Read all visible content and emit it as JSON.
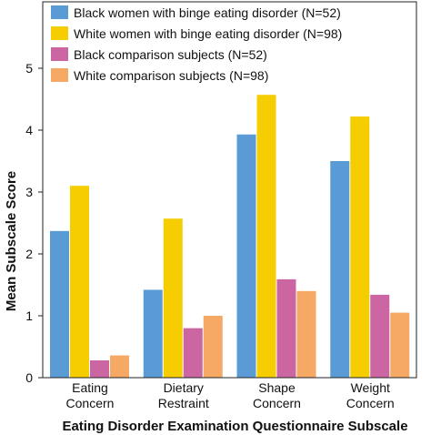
{
  "chart_data": {
    "type": "bar",
    "categories": [
      [
        "Eating",
        "Concern"
      ],
      [
        "Dietary",
        "Restraint"
      ],
      [
        "Shape",
        "Concern"
      ],
      [
        "Weight",
        "Concern"
      ]
    ],
    "series": [
      {
        "name": "Black women with binge eating disorder (N=52)",
        "color": "#5b9bd5",
        "values": [
          2.37,
          1.42,
          3.93,
          3.5
        ]
      },
      {
        "name": "White women with binge eating disorder (N=98)",
        "color": "#f5cd00",
        "values": [
          3.1,
          2.57,
          4.57,
          4.22
        ]
      },
      {
        "name": "Black comparison subjects (N=52)",
        "color": "#cc66a3",
        "values": [
          0.28,
          0.8,
          1.59,
          1.34
        ]
      },
      {
        "name": "White comparison subjects (N=98)",
        "color": "#f5a964",
        "values": [
          0.36,
          1.0,
          1.4,
          1.05
        ]
      }
    ],
    "xlabel": "Eating Disorder Examination Questionnaire Subscale",
    "ylabel": "Mean Subscale Score",
    "ylim": [
      0,
      5
    ],
    "yticks": [
      0,
      1,
      2,
      3,
      4,
      5
    ],
    "grid": false,
    "legend_position": "top-left"
  }
}
